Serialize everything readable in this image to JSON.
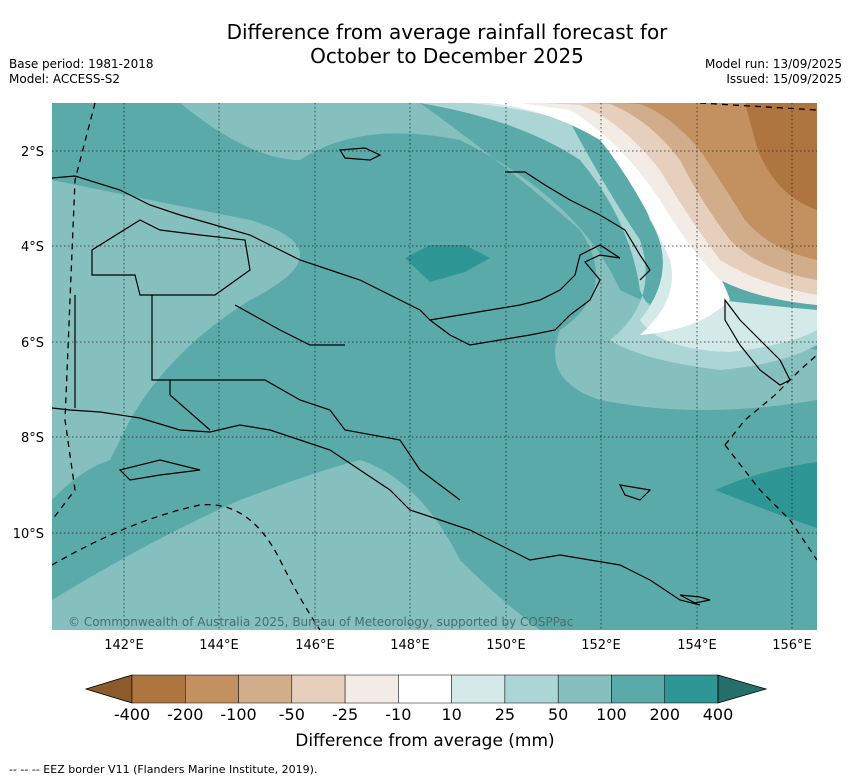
{
  "title_line1": "Difference from average rainfall forecast for",
  "title_line2": "October to December 2025",
  "meta": {
    "base_period": "Base period: 1981-2018",
    "model": "Model: ACCESS-S2",
    "model_run": "Model run: 13/09/2025",
    "issued": "Issued: 15/09/2025"
  },
  "map": {
    "lon_ticks": [
      "142°E",
      "144°E",
      "146°E",
      "148°E",
      "150°E",
      "152°E",
      "154°E",
      "156°E"
    ],
    "lat_ticks": [
      "2°S",
      "4°S",
      "6°S",
      "8°S",
      "10°S"
    ],
    "copyright": "© Commonwealth of Australia 2025, Bureau of Meteorology, supported by COSPPac"
  },
  "colorbar": {
    "label": "Difference from average (mm)",
    "ticks": [
      "-400",
      "-200",
      "-100",
      "-50",
      "-25",
      "-10",
      "10",
      "25",
      "50",
      "100",
      "200",
      "400"
    ],
    "colors": [
      "#8c5a2b",
      "#ae7540",
      "#c2915f",
      "#d2ad8b",
      "#e6d0bd",
      "#f3ece6",
      "#ffffff",
      "#d3eae9",
      "#acd6d5",
      "#85c0bf",
      "#5aaaaa",
      "#2e9694",
      "#256f6b"
    ]
  },
  "footnote": "--  --  -- EEZ border V11 (Flanders Marine Institute, 2019)."
}
